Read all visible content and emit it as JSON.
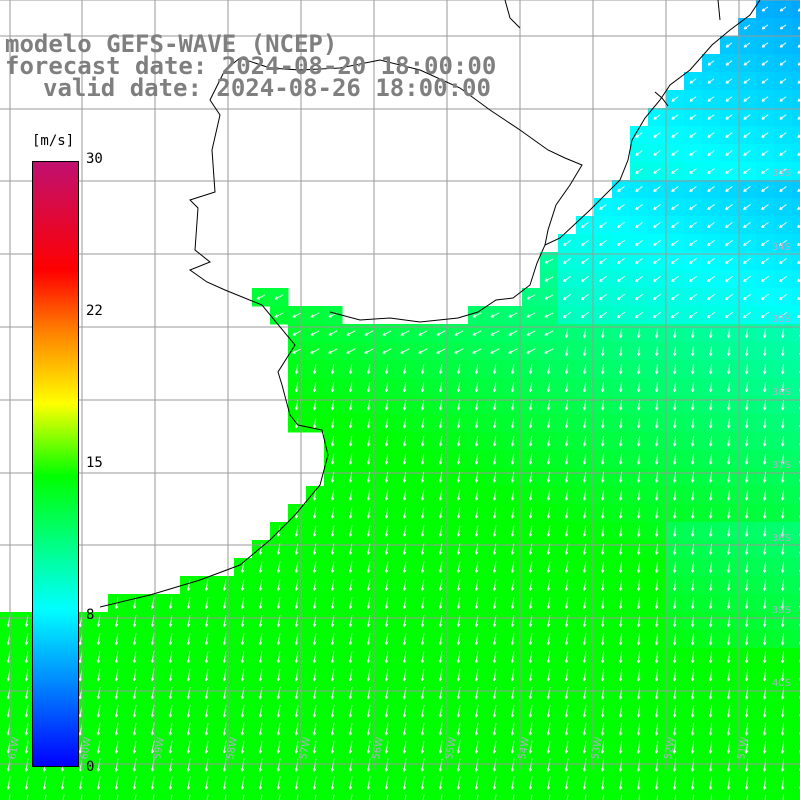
{
  "title": {
    "line1": "modelo GEFS-WAVE (NCEP)",
    "line2": "forecast date: 2024-08-20 18:00:00",
    "line3": "valid date: 2024-08-26 18:00:00"
  },
  "colorbar": {
    "unit": "[m/s]",
    "ticks": [
      "30",
      "22",
      "15",
      "8",
      "0"
    ],
    "colors": [
      "#0000ff",
      "#0080ff",
      "#00ffff",
      "#00ff00",
      "#ffff00",
      "#ff8000",
      "#ff0000",
      "#c01070"
    ]
  },
  "map": {
    "lat_labels": [
      "33S",
      "34S",
      "35S",
      "36S",
      "37S",
      "38S",
      "39S",
      "40S"
    ],
    "lon_labels": [
      "61W",
      "60W",
      "59W",
      "58W",
      "57W",
      "56W",
      "55W",
      "54W",
      "53W",
      "52W",
      "51W"
    ],
    "land_color": "#ffffff",
    "grid_color": "#9a9a9a",
    "arrow_color": "#ffffff"
  }
}
